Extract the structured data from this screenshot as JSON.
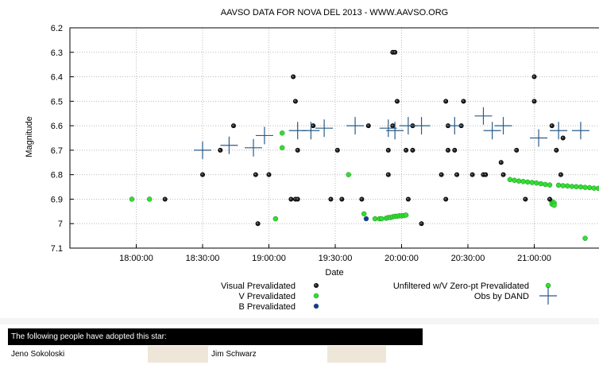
{
  "chart_data": {
    "type": "scatter",
    "title": "AAVSO DATA FOR NOVA DEL 2013 - WWW.AAVSO.ORG",
    "xlabel": "Date",
    "ylabel": "Magnitude",
    "y_inverted": true,
    "ylim": [
      6.2,
      7.1
    ],
    "xlim": [
      "17:30:00",
      "21:30:00"
    ],
    "xticks": [
      "18:00:00",
      "18:30:00",
      "19:00:00",
      "19:30:00",
      "20:00:00",
      "20:30:00",
      "21:00:00"
    ],
    "yticks": [
      "6.2",
      "6.3",
      "6.4",
      "6.5",
      "6.6",
      "6.7",
      "6.8",
      "6.9",
      "7",
      "7.1"
    ],
    "grid": true,
    "legend_position": "bottom",
    "series": [
      {
        "name": "Visual Prevalidated",
        "marker": "open-circle",
        "color": "#000000",
        "x": [
          "18:13:00",
          "18:30:00",
          "18:38:00",
          "18:44:00",
          "18:54:00",
          "18:55:00",
          "19:00:00",
          "19:10:00",
          "19:11:00",
          "19:12:00",
          "19:12:00",
          "19:13:00",
          "19:13:00",
          "19:20:00",
          "19:28:00",
          "19:31:00",
          "19:33:00",
          "19:42:00",
          "19:45:00",
          "19:54:00",
          "19:54:00",
          "19:56:00",
          "19:56:00",
          "19:57:00",
          "19:58:00",
          "20:02:00",
          "20:03:00",
          "20:05:00",
          "20:05:00",
          "20:09:00",
          "20:18:00",
          "20:20:00",
          "20:20:00",
          "20:21:00",
          "20:21:00",
          "20:24:00",
          "20:25:00",
          "20:27:00",
          "20:28:00",
          "20:32:00",
          "20:37:00",
          "20:38:00",
          "20:45:00",
          "20:46:00",
          "20:52:00",
          "20:56:00",
          "21:00:00",
          "21:00:00",
          "21:07:00",
          "21:08:00",
          "21:10:00",
          "21:12:00",
          "21:13:00"
        ],
        "y": [
          6.9,
          6.8,
          6.7,
          6.6,
          6.8,
          7.0,
          6.8,
          6.9,
          6.4,
          6.5,
          6.9,
          6.7,
          6.9,
          6.6,
          6.9,
          6.7,
          6.9,
          6.9,
          6.6,
          6.8,
          6.7,
          6.6,
          6.3,
          6.3,
          6.5,
          6.7,
          6.9,
          6.6,
          6.7,
          7.0,
          6.8,
          6.5,
          6.9,
          6.7,
          6.6,
          6.7,
          6.8,
          6.6,
          6.5,
          6.8,
          6.8,
          6.8,
          6.75,
          6.8,
          6.7,
          6.9,
          6.5,
          6.4,
          6.9,
          6.6,
          6.7,
          6.8,
          6.65
        ]
      },
      {
        "name": "V Prevalidated",
        "marker": "filled-circle",
        "color": "#33dd33",
        "x": [
          "17:58:00",
          "18:06:00",
          "19:03:00",
          "19:06:00",
          "19:06:00",
          "19:36:00",
          "19:43:00"
        ],
        "y": [
          6.9,
          6.9,
          6.98,
          6.69,
          6.63,
          6.8,
          6.96
        ]
      },
      {
        "name": "B Prevalidated",
        "marker": "filled-circle",
        "color": "#1a2fb0",
        "x": [
          "19:44:00"
        ],
        "y": [
          6.98
        ]
      },
      {
        "name": "Unfiltered w/V Zero-pt Prevalidated",
        "marker": "filled-circle",
        "color": "#33dd33",
        "x": [
          "19:48:00",
          "19:50:00",
          "19:51:00",
          "19:53:00",
          "19:54:00",
          "19:55:00",
          "19:56:00",
          "19:57:00",
          "19:58:00",
          "19:59:00",
          "20:00:00",
          "20:01:00",
          "20:02:00",
          "20:49:00",
          "20:51:00",
          "20:53:00",
          "20:55:00",
          "20:57:00",
          "20:59:00",
          "21:01:00",
          "21:03:00",
          "21:05:00",
          "21:07:00",
          "21:08:00",
          "21:08:00",
          "21:09:00",
          "21:09:00",
          "21:11:00",
          "21:13:00",
          "21:15:00",
          "21:17:00",
          "21:19:00",
          "21:21:00",
          "21:23:00",
          "21:25:00",
          "21:27:00",
          "21:29:00",
          "21:23:00"
        ],
        "y": [
          6.98,
          6.98,
          6.98,
          6.978,
          6.975,
          6.975,
          6.972,
          6.97,
          6.97,
          6.968,
          6.968,
          6.967,
          6.965,
          6.82,
          6.823,
          6.826,
          6.828,
          6.83,
          6.832,
          6.834,
          6.837,
          6.84,
          6.842,
          6.91,
          6.92,
          6.915,
          6.925,
          6.843,
          6.845,
          6.846,
          6.848,
          6.849,
          6.85,
          6.852,
          6.853,
          6.855,
          6.856,
          7.06
        ]
      },
      {
        "name": "Obs by DAND",
        "marker": "cross",
        "color": "#2a5b87",
        "x": [
          "18:30:00",
          "18:42:00",
          "18:53:00",
          "18:58:00",
          "19:13:00",
          "19:19:00",
          "19:25:00",
          "19:39:00",
          "19:54:00",
          "19:57:00",
          "20:03:00",
          "20:09:00",
          "20:24:00",
          "20:37:00",
          "20:41:00",
          "20:46:00",
          "21:02:00",
          "21:11:00",
          "21:21:00"
        ],
        "y": [
          6.7,
          6.68,
          6.69,
          6.64,
          6.62,
          6.62,
          6.61,
          6.6,
          6.61,
          6.62,
          6.6,
          6.6,
          6.6,
          6.56,
          6.62,
          6.6,
          6.65,
          6.62,
          6.62
        ]
      }
    ]
  },
  "adoption": {
    "header": "The following people have adopted this star:",
    "names": [
      "Jeno Sokoloski",
      "Jim Schwarz"
    ]
  }
}
